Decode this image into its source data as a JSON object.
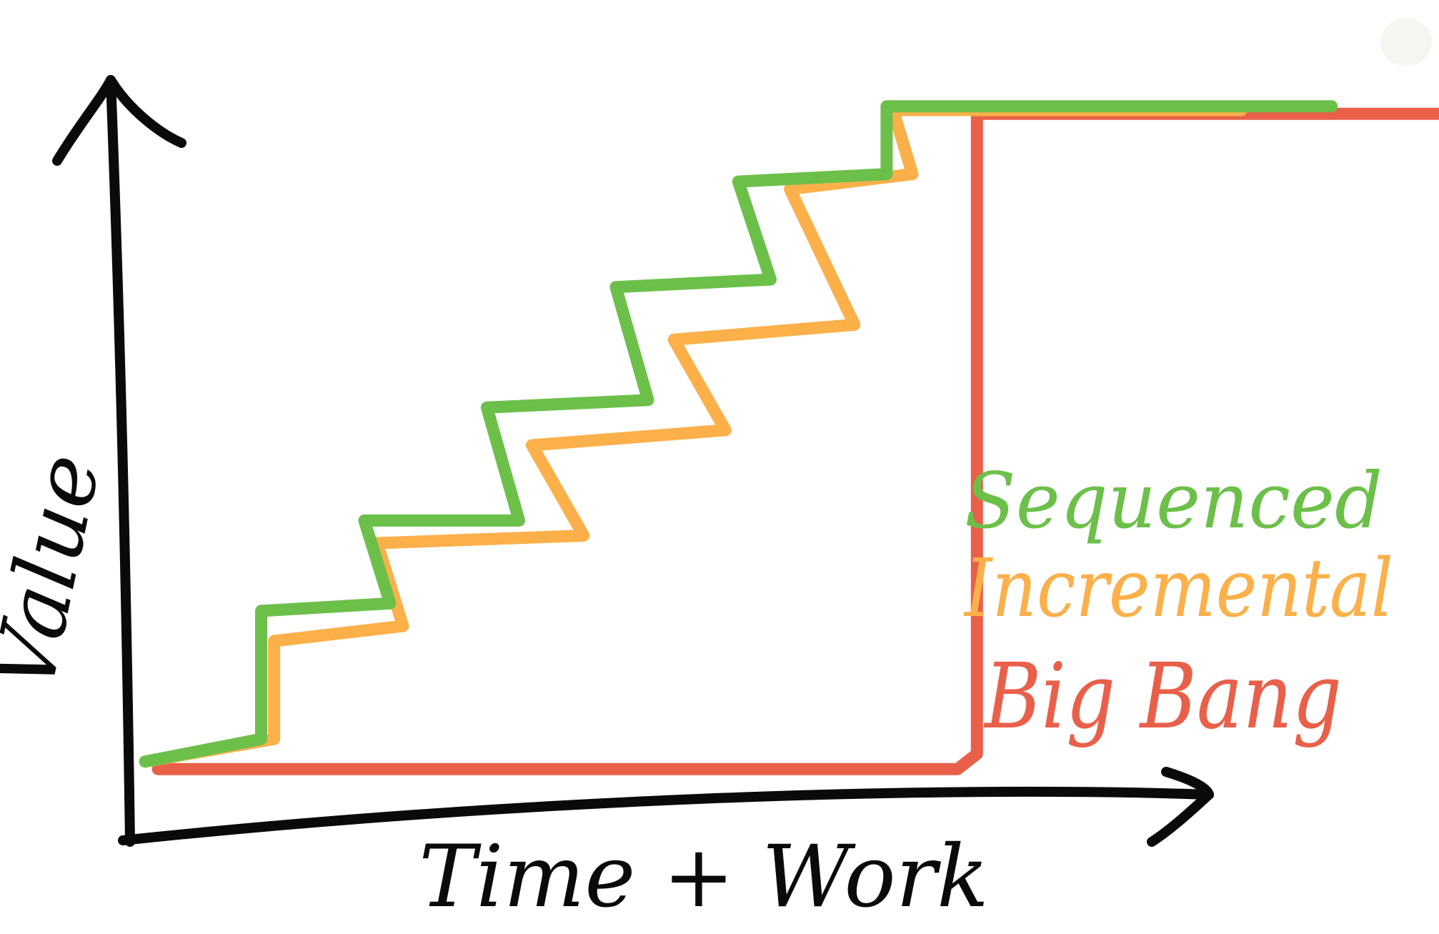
{
  "chart_data": {
    "type": "line",
    "title": "",
    "xlabel": "Time + Work",
    "ylabel": "Value",
    "xlim": [
      0,
      10
    ],
    "ylim": [
      0,
      10
    ],
    "grid": false,
    "legend_position": "right",
    "series": [
      {
        "name": "Big Bang",
        "color": "#e9604a",
        "x": [
          0.2,
          6.4,
          6.55,
          6.55,
          10.2
        ],
        "y": [
          0.7,
          0.7,
          0.9,
          9.4,
          9.4
        ]
      },
      {
        "name": "Incremental",
        "color": "#fbb04a",
        "x": [
          0.1,
          1.1,
          1.1,
          2.1,
          1.9,
          3.5,
          3.1,
          4.6,
          4.2,
          5.6,
          5.1,
          6.05,
          5.9,
          8.6
        ],
        "y": [
          0.8,
          1.1,
          2.4,
          2.6,
          3.7,
          3.8,
          5.0,
          5.2,
          6.4,
          6.6,
          8.4,
          8.6,
          9.45,
          9.45
        ]
      },
      {
        "name": "Sequenced",
        "color": "#6cc04a",
        "x": [
          0.1,
          1.0,
          1.0,
          2.0,
          1.8,
          3.0,
          2.75,
          4.0,
          3.75,
          4.95,
          4.7,
          5.85,
          5.85,
          9.3
        ],
        "y": [
          0.8,
          1.1,
          2.8,
          2.9,
          4.0,
          4.0,
          5.5,
          5.6,
          7.1,
          7.2,
          8.5,
          8.6,
          9.5,
          9.5
        ]
      }
    ]
  },
  "legend": {
    "sequenced_label": "Sequenced",
    "incremental_label": "Incremental",
    "bigbang_label": "Big Bang"
  }
}
